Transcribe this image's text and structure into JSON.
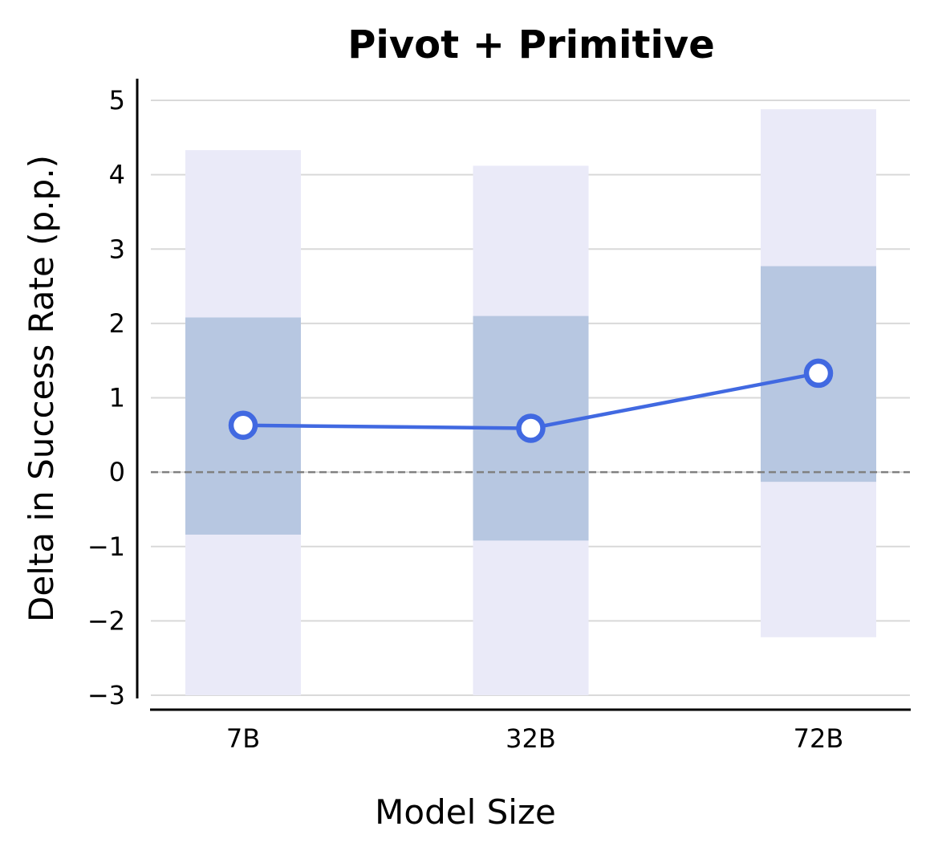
{
  "chart_data": {
    "type": "line",
    "title": "Pivot + Primitive",
    "xlabel": "Model Size",
    "ylabel": "Delta in Success Rate (p.p.)",
    "categories": [
      "7B",
      "32B",
      "72B"
    ],
    "ylim": [
      -3,
      5
    ],
    "yticks": [
      5,
      4,
      3,
      2,
      1,
      0,
      -1,
      -2,
      -3
    ],
    "ytick_labels": [
      "5",
      "4",
      "3",
      "2",
      "1",
      "0",
      "−1",
      "−2",
      "−3"
    ],
    "series": [
      {
        "values": [
          0.63,
          0.59,
          1.33
        ]
      }
    ],
    "ci_inner": [
      [
        -0.84,
        2.08
      ],
      [
        -0.92,
        2.1
      ],
      [
        -0.13,
        2.77
      ]
    ],
    "ci_outer": [
      [
        -3.0,
        4.33
      ],
      [
        -3.0,
        4.12
      ],
      [
        -2.22,
        4.88
      ]
    ],
    "reference_line": 0,
    "grid": true,
    "colors": {
      "line": "#4169E1",
      "inner_band": "#B7C7E1",
      "outer_band": "#EAEAF8",
      "grid": "#D9D9D9",
      "reference": "#808080"
    }
  }
}
